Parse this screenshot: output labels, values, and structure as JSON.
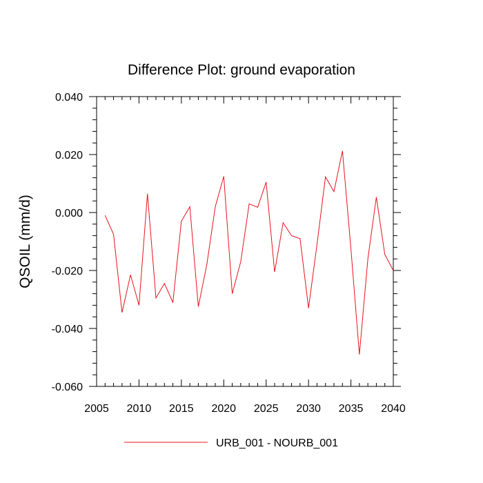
{
  "chart_data": {
    "type": "line",
    "title": "Difference Plot: ground evaporation",
    "xlabel": "",
    "ylabel": "QSOIL  (mm/d)",
    "xlim": [
      2005,
      2040
    ],
    "ylim": [
      -0.06,
      0.04
    ],
    "x_ticks": [
      2005,
      2010,
      2015,
      2020,
      2025,
      2030,
      2035,
      2040
    ],
    "x_tick_labels": [
      "2005",
      "2010",
      "2015",
      "2020",
      "2025",
      "2030",
      "2035",
      "2040"
    ],
    "y_ticks": [
      0.04,
      0.02,
      0.0,
      -0.02,
      -0.04,
      -0.06
    ],
    "y_tick_labels": [
      "0.040",
      "0.020",
      "0.000",
      "-0.020",
      "-0.040",
      "-0.060"
    ],
    "grid": false,
    "legend_position": "bottom-center",
    "series": [
      {
        "name": "URB_001 - NOURB_001",
        "color": "#e8101b",
        "x": [
          2006,
          2007,
          2008,
          2009,
          2010,
          2011,
          2012,
          2013,
          2014,
          2015,
          2016,
          2017,
          2018,
          2019,
          2020,
          2021,
          2022,
          2023,
          2024,
          2025,
          2026,
          2027,
          2028,
          2029,
          2030,
          2031,
          2032,
          2033,
          2034,
          2035,
          2036,
          2037,
          2038,
          2039,
          2040
        ],
        "values": [
          -0.001,
          -0.0075,
          -0.0345,
          -0.0215,
          -0.032,
          0.0065,
          -0.0295,
          -0.0245,
          -0.031,
          -0.003,
          0.002,
          -0.0325,
          -0.018,
          0.002,
          0.0125,
          -0.028,
          -0.017,
          0.003,
          0.0018,
          0.0105,
          -0.0205,
          -0.0035,
          -0.008,
          -0.009,
          -0.033,
          -0.011,
          0.0123,
          0.0072,
          0.0213,
          -0.0125,
          -0.049,
          -0.016,
          0.0053,
          -0.0145,
          -0.02
        ]
      }
    ]
  }
}
